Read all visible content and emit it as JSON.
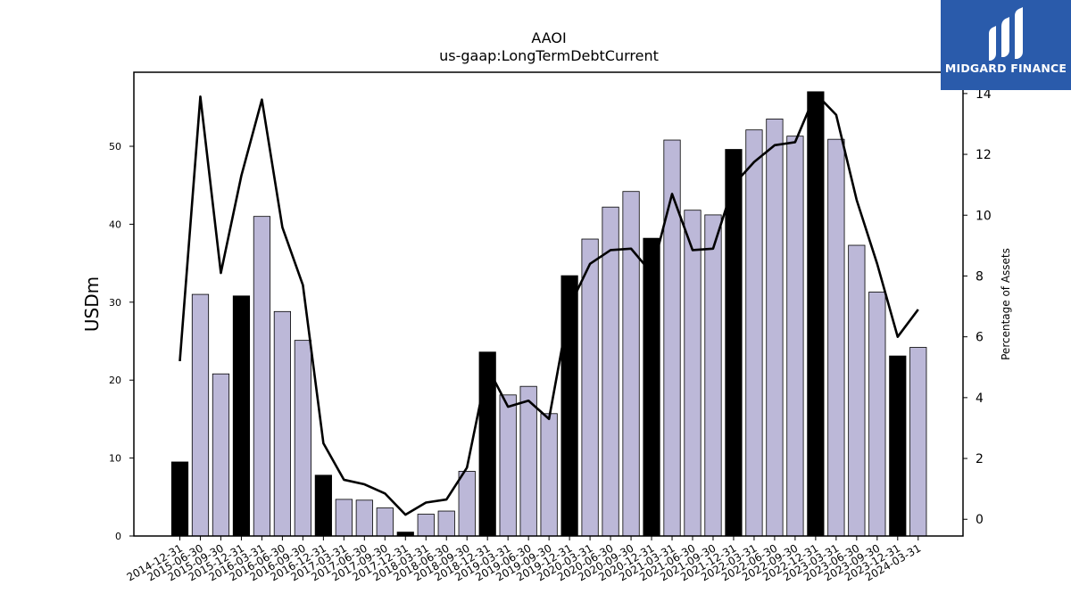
{
  "brand": {
    "name": "MIDGARD FINANCE",
    "bg_color": "#2a5bab"
  },
  "chart_data": {
    "type": "bar",
    "title": "AAOI",
    "subtitle": "us-gaap:LongTermDebtCurrent",
    "ylabel": "USDm",
    "y2label": "Percentage of Assets",
    "ylim": [
      0,
      59.5
    ],
    "y2lim": [
      -0.55,
      14.7
    ],
    "yticks": [
      0,
      10,
      20,
      30,
      40,
      50
    ],
    "y2ticks": [
      0,
      2,
      4,
      6,
      8,
      10,
      12,
      14
    ],
    "grid": false,
    "colors": {
      "annual": "#000000",
      "quarterly": "#bcb8d8",
      "line": "#000000"
    },
    "categories": [
      "2014-12-31",
      "2015-06-30",
      "2015-09-30",
      "2015-12-31",
      "2016-03-31",
      "2016-06-30",
      "2016-09-30",
      "2016-12-31",
      "2017-03-31",
      "2017-06-30",
      "2017-09-30",
      "2017-12-31",
      "2018-03-31",
      "2018-06-30",
      "2018-09-30",
      "2018-12-31",
      "2019-03-31",
      "2019-06-30",
      "2019-09-30",
      "2019-12-31",
      "2020-03-31",
      "2020-06-30",
      "2020-09-30",
      "2020-12-31",
      "2021-03-31",
      "2021-06-30",
      "2021-09-30",
      "2021-12-31",
      "2022-03-31",
      "2022-06-30",
      "2022-09-30",
      "2022-12-31",
      "2023-03-31",
      "2023-06-30",
      "2023-09-30",
      "2023-12-31",
      "2024-03-31"
    ],
    "series": [
      {
        "kind": "bar",
        "values": [
          9.5,
          31.0,
          20.8,
          30.8,
          41.0,
          28.8,
          25.1,
          7.8,
          4.7,
          4.6,
          3.6,
          0.5,
          2.8,
          3.2,
          8.3,
          23.6,
          18.1,
          19.2,
          15.7,
          33.4,
          38.1,
          42.2,
          44.2,
          38.2,
          50.8,
          41.8,
          41.2,
          49.6,
          52.1,
          53.5,
          51.3,
          57.0,
          50.9,
          37.3,
          31.3,
          23.1,
          24.2
        ],
        "annual_flags": [
          true,
          false,
          false,
          true,
          false,
          false,
          false,
          true,
          false,
          false,
          false,
          true,
          false,
          false,
          false,
          true,
          false,
          false,
          false,
          true,
          false,
          false,
          false,
          true,
          false,
          false,
          false,
          true,
          false,
          false,
          false,
          true,
          false,
          false,
          false,
          true,
          false
        ]
      },
      {
        "kind": "line",
        "axis": "right",
        "values": [
          5.2,
          13.9,
          8.1,
          11.3,
          13.8,
          9.6,
          7.7,
          2.5,
          1.3,
          1.15,
          0.85,
          0.15,
          0.55,
          0.65,
          1.7,
          5.0,
          3.7,
          3.9,
          3.3,
          7.0,
          8.4,
          8.85,
          8.9,
          8.1,
          10.7,
          8.85,
          8.9,
          11.0,
          11.75,
          12.3,
          12.4,
          14.0,
          13.3,
          10.5,
          8.4,
          6.0,
          6.9
        ]
      }
    ]
  }
}
